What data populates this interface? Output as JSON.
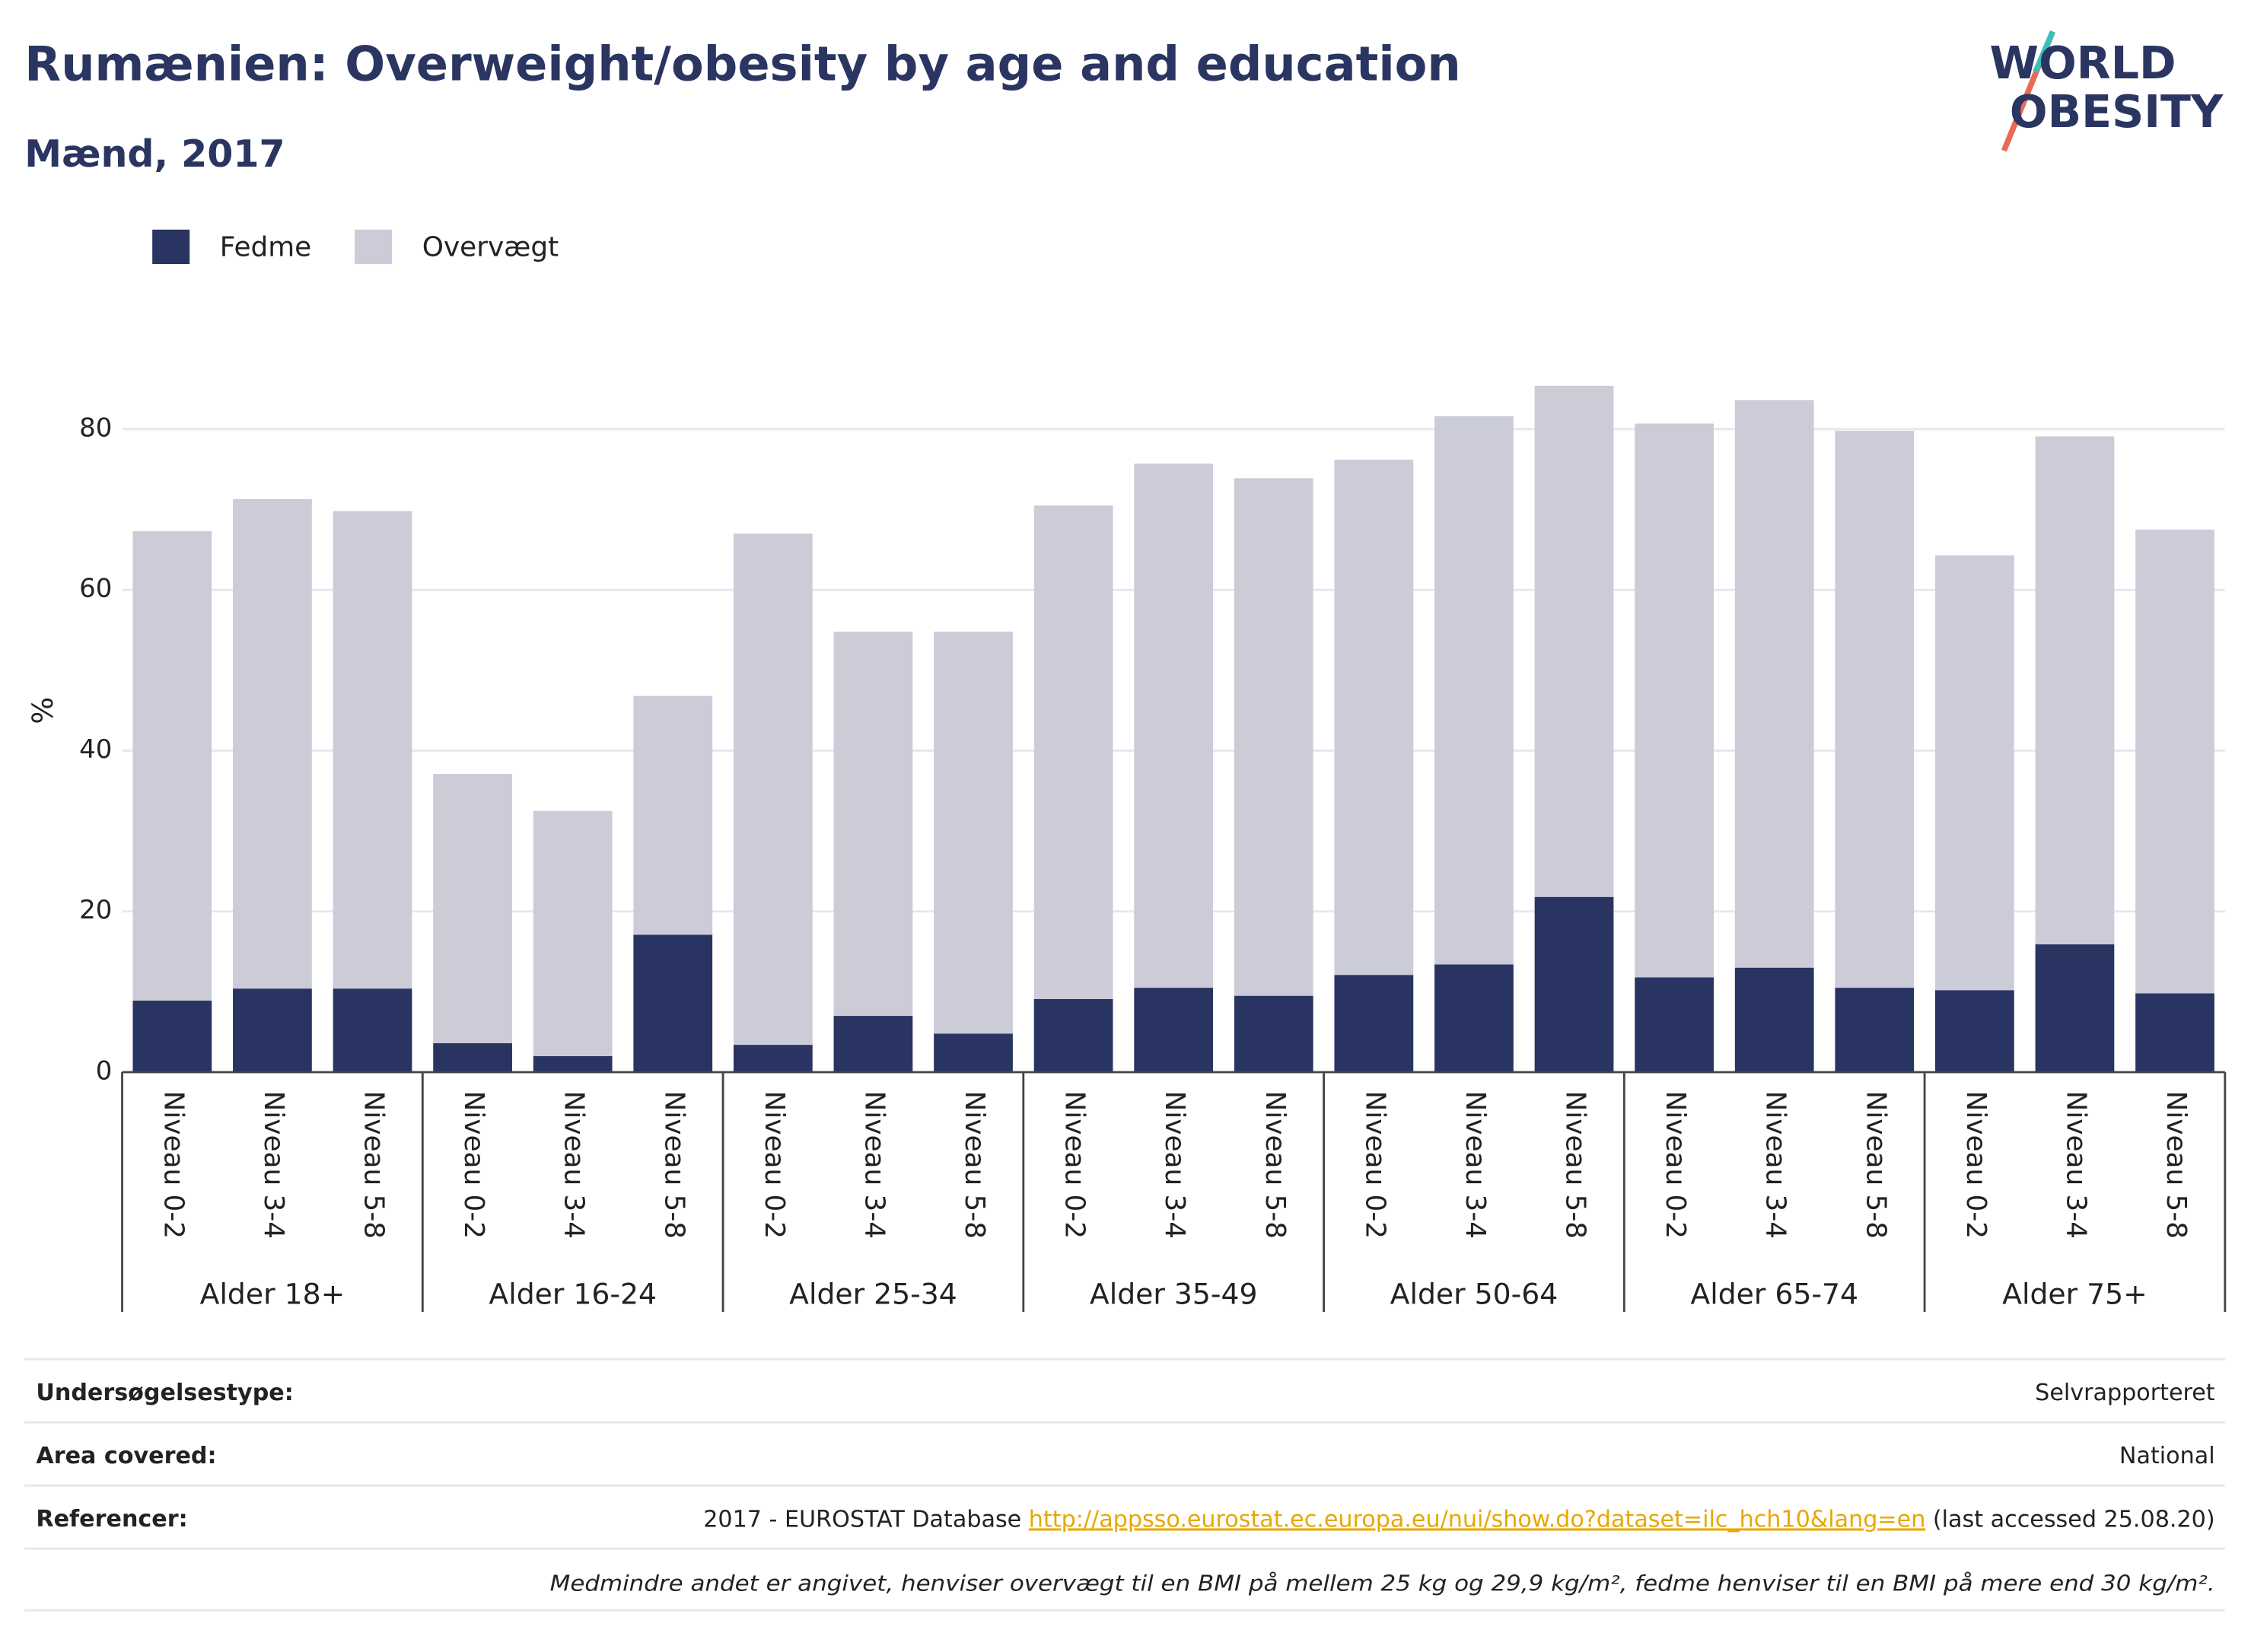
{
  "chart_data": {
    "type": "stacked_bar",
    "title": "Rumænien: Overweight/obesity by age and education",
    "subtitle": "Mænd, 2017",
    "y_label": "%",
    "categories": [
      "Niveau 0-2",
      "Niveau 3-4",
      "Niveau 5-8",
      "Niveau 0-2",
      "Niveau 3-4",
      "Niveau 5-8",
      "Niveau 0-2",
      "Niveau 3-4",
      "Niveau 5-8",
      "Niveau 0-2",
      "Niveau 3-4",
      "Niveau 5-8",
      "Niveau 0-2",
      "Niveau 3-4",
      "Niveau 5-8",
      "Niveau 0-2",
      "Niveau 3-4",
      "Niveau 5-8",
      "Niveau 0-2",
      "Niveau 3-4",
      "Niveau 5-8"
    ],
    "groups": [
      "Alder 18+",
      "Alder 16-24",
      "Alder 25-34",
      "Alder 35-49",
      "Alder 50-64",
      "Alder 65-74",
      "Alder 75+"
    ],
    "series": [
      {
        "name": "Fedme",
        "color": "#293462",
        "values": [
          8.9,
          10.4,
          10.4,
          3.6,
          2.0,
          17.1,
          3.4,
          7.0,
          4.8,
          9.1,
          10.5,
          9.5,
          12.1,
          13.4,
          21.8,
          11.8,
          13.0,
          10.5,
          10.2,
          15.9,
          9.8
        ]
      },
      {
        "name": "Overvægt",
        "color": "#cbccd8",
        "values": [
          58.4,
          60.9,
          59.4,
          33.5,
          30.5,
          29.7,
          63.6,
          47.8,
          50.0,
          61.4,
          65.2,
          64.4,
          64.1,
          68.2,
          63.6,
          68.9,
          70.6,
          69.3,
          54.1,
          63.2,
          57.7
        ]
      }
    ],
    "ylim": [
      0,
      90
    ],
    "yticks": [
      0,
      20,
      40,
      60,
      80
    ],
    "grid": true
  },
  "logo": {
    "line1": "WORLD",
    "line2": "OBESITY"
  },
  "footer": {
    "rows": [
      {
        "label": "Undersøgelsestype:",
        "value": "Selvrapporteret"
      },
      {
        "label": "Area covered:",
        "value": "National"
      }
    ],
    "reference": {
      "label": "Referencer:",
      "before": "2017 - EUROSTAT Database ",
      "link": "http://appsso.eurostat.ec.europa.eu/nui/show.do?dataset=ilc_hch10&lang=en",
      "after": " (last accessed 25.08.20)"
    },
    "note": "Medmindre andet er angivet, henviser overvægt til en BMI på mellem 25 kg og 29,9 kg/m², fedme henviser til en BMI på mere end 30 kg/m²."
  }
}
